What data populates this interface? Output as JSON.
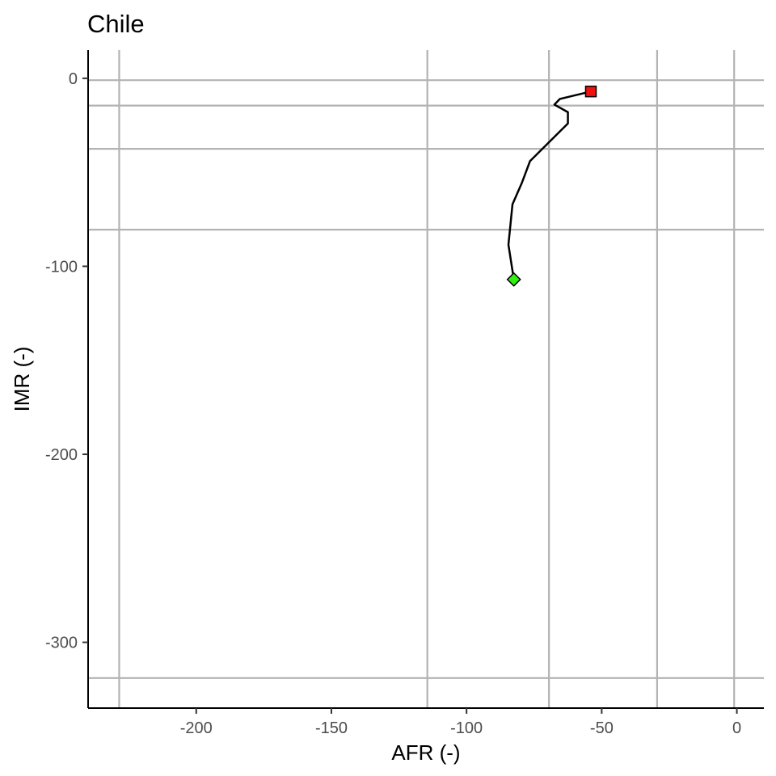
{
  "chart_data": {
    "type": "line",
    "title": "Chile",
    "xlabel": "AFR (-)",
    "ylabel": "IMR (-)",
    "xlim": [
      -240,
      10
    ],
    "ylim": [
      -335,
      15
    ],
    "x_ticks": [
      {
        "value": -200,
        "label": "-200"
      },
      {
        "value": -150,
        "label": "-150"
      },
      {
        "value": -100,
        "label": "-100"
      },
      {
        "value": -50,
        "label": "-50"
      },
      {
        "value": 0,
        "label": "0"
      }
    ],
    "y_ticks": [
      {
        "value": 0,
        "label": "0"
      },
      {
        "value": -100,
        "label": "-100"
      },
      {
        "value": -200,
        "label": "-200"
      },
      {
        "value": -300,
        "label": "-300"
      }
    ],
    "grid": {
      "x_lines": [
        -228.5,
        -114.5,
        -69.5,
        -29.5,
        -1
      ],
      "y_lines": [
        -1,
        -14.5,
        -37.5,
        -80.5,
        -319
      ]
    },
    "series": [
      {
        "color": "#000000",
        "x": [
          -82.5,
          -84.5,
          -83,
          -79.5,
          -76.5,
          -62.5,
          -62.5,
          -67.5,
          -65.5,
          -54
        ],
        "y": [
          -107,
          -88.5,
          -67,
          -55.5,
          -44,
          -24,
          -18,
          -14,
          -11,
          -7
        ]
      }
    ],
    "markers": [
      {
        "shape": "diamond",
        "color": "#33ee11",
        "x": -82.5,
        "y": -107
      },
      {
        "shape": "square",
        "color": "#ee1111",
        "x": -54,
        "y": -7
      }
    ],
    "legend": "none"
  }
}
